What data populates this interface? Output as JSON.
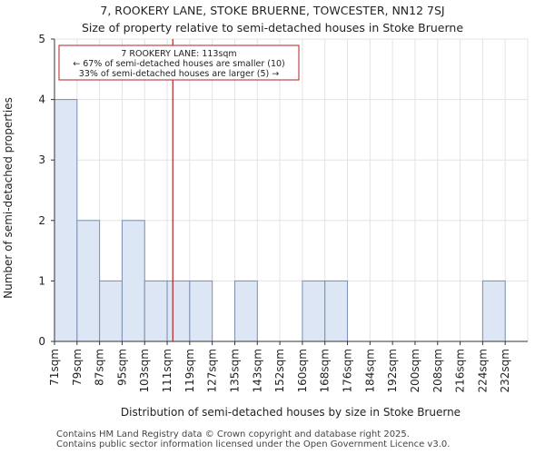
{
  "chart_data": {
    "type": "bar",
    "title": "7, ROOKERY LANE, STOKE BRUERNE, TOWCESTER, NN12 7SJ",
    "subtitle": "Size of property relative to semi-detached houses in Stoke Bruerne",
    "xlabel": "Distribution of semi-detached houses by size in Stoke Bruerne",
    "ylabel": "Number of semi-detached properties",
    "categories": [
      "71sqm",
      "79sqm",
      "87sqm",
      "95sqm",
      "103sqm",
      "111sqm",
      "119sqm",
      "127sqm",
      "135sqm",
      "143sqm",
      "152sqm",
      "160sqm",
      "168sqm",
      "176sqm",
      "184sqm",
      "192sqm",
      "200sqm",
      "208sqm",
      "216sqm",
      "224sqm",
      "232sqm"
    ],
    "values": [
      4,
      2,
      1,
      2,
      1,
      1,
      1,
      0,
      1,
      0,
      0,
      1,
      1,
      0,
      0,
      0,
      0,
      0,
      0,
      1,
      0
    ],
    "ylim": [
      0,
      5
    ],
    "yticks": [
      0,
      1,
      2,
      3,
      4,
      5
    ],
    "grid": true,
    "bar_color": "#dce6f4",
    "bar_edge_color": "#7b8fb0",
    "marker": {
      "value_sqm": 113,
      "color": "#b22222",
      "annotation": [
        "7 ROOKERY LANE: 113sqm",
        "← 67% of semi-detached houses are smaller (10)",
        "33% of semi-detached houses are larger (5) →"
      ]
    }
  },
  "footer": [
    "Contains HM Land Registry data © Crown copyright and database right 2025.",
    "Contains public sector information licensed under the Open Government Licence v3.0."
  ]
}
